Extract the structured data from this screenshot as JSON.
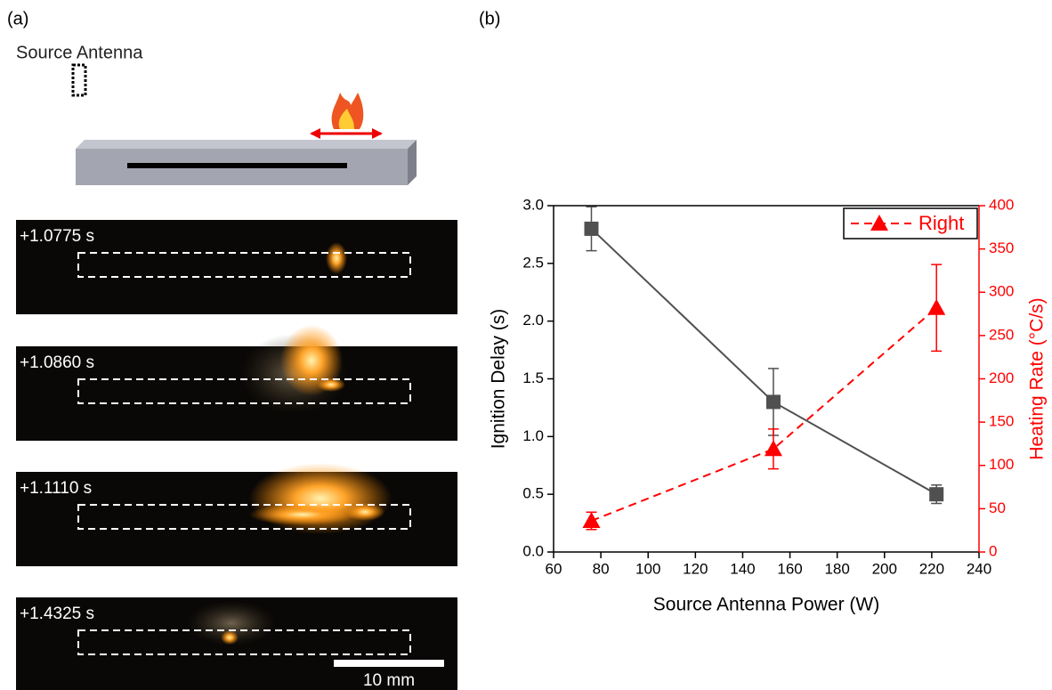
{
  "panel_a": {
    "label": "(a)",
    "antenna_label": "Source Antenna",
    "frames": [
      "+1.0775 s",
      "+1.0860 s",
      "+1.1110 s",
      "+1.4325 s"
    ],
    "scale_bar": "10 mm"
  },
  "panel_b": {
    "label": "(b)"
  },
  "chart_data": {
    "type": "line",
    "xlabel": "Source Antenna Power (W)",
    "ylabel": "Ignition Delay (s)",
    "y2label": "Heating Rate (°C/s)",
    "xlim": [
      60,
      240
    ],
    "xticks": [
      60,
      80,
      100,
      120,
      140,
      160,
      180,
      200,
      220,
      240
    ],
    "ylim": [
      0,
      3
    ],
    "yticks": [
      {
        "value": 0,
        "label": "0.0"
      },
      0.5,
      {
        "value": 1,
        "label": "1.0"
      },
      1.5,
      {
        "value": 2,
        "label": "2.0"
      },
      2.5,
      {
        "value": 3,
        "label": "3.0"
      }
    ],
    "y2lim": [
      0,
      400
    ],
    "y2ticks": [
      0,
      50,
      100,
      150,
      200,
      250,
      300,
      350,
      400
    ],
    "grid": false,
    "legend": "upper right",
    "series": [
      {
        "color": "#505050",
        "marker": "square",
        "line_style": "solid",
        "x": [
          76,
          153,
          222
        ],
        "values": [
          2.8,
          1.3,
          0.5
        ],
        "errors": [
          0.19,
          0.29,
          0.08
        ]
      },
      {
        "name": "Right",
        "color": "#ff0000",
        "marker": "triangle",
        "line_style": "dashed",
        "axis": "y2",
        "x": [
          76,
          153,
          222
        ],
        "values": [
          36,
          119,
          282
        ],
        "errors": [
          10,
          23,
          50
        ]
      }
    ]
  }
}
